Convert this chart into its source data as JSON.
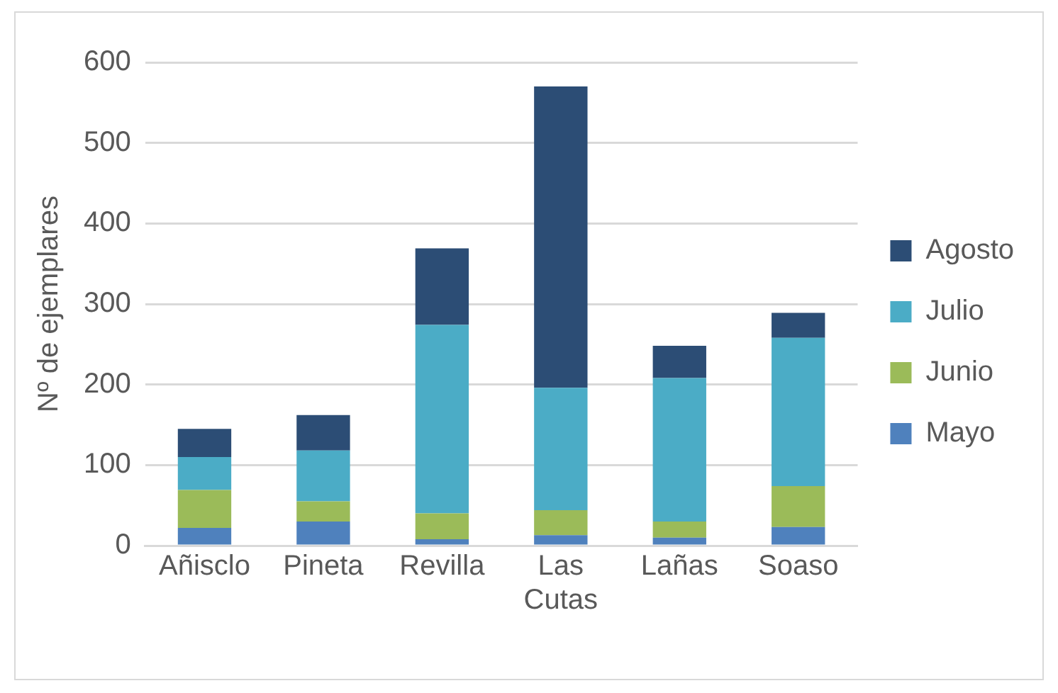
{
  "chart_data": {
    "type": "bar",
    "stacked": true,
    "ylabel": "Nº de ejemplares",
    "categories": [
      "Añisclo",
      "Pineta",
      "Revilla",
      "Las Cutas",
      "Lañas",
      "Soaso"
    ],
    "series": [
      {
        "name": "Mayo",
        "color": "#4f81bd",
        "values": [
          22,
          30,
          8,
          13,
          10,
          23
        ]
      },
      {
        "name": "Junio",
        "color": "#9bbb59",
        "values": [
          47,
          25,
          32,
          31,
          20,
          51
        ]
      },
      {
        "name": "Julio",
        "color": "#4bacc6",
        "values": [
          41,
          63,
          234,
          152,
          178,
          184
        ]
      },
      {
        "name": "Agosto",
        "color": "#2c4d75",
        "values": [
          35,
          44,
          95,
          374,
          40,
          31
        ]
      }
    ],
    "ylim": [
      0,
      600
    ],
    "yticks": [
      0,
      100,
      200,
      300,
      400,
      500,
      600
    ],
    "grid": "y",
    "legend": "right"
  }
}
